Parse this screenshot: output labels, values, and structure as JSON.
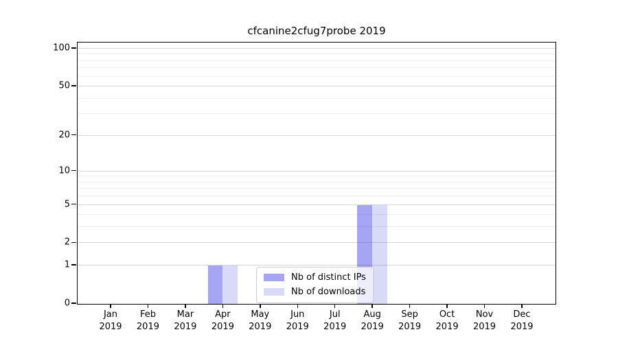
{
  "chart_data": {
    "type": "bar",
    "title": "cfcanine2cfug7probe 2019",
    "categories": [
      "Jan 2019",
      "Feb 2019",
      "Mar 2019",
      "Apr 2019",
      "May 2019",
      "Jun 2019",
      "Jul 2019",
      "Aug 2019",
      "Sep 2019",
      "Oct 2019",
      "Nov 2019",
      "Dec 2019"
    ],
    "series": [
      {
        "name": "Nb of distinct IPs",
        "color": "#a5a5f4",
        "values": [
          0,
          0,
          0,
          1,
          0,
          0,
          0,
          5,
          0,
          0,
          0,
          0
        ]
      },
      {
        "name": "Nb of downloads",
        "color": "#d9d9f8",
        "values": [
          0,
          0,
          0,
          1,
          0,
          0,
          0,
          5,
          0,
          0,
          0,
          0
        ]
      }
    ],
    "y_scale": "log1p",
    "y_major_ticks": [
      0,
      1,
      2,
      5,
      10,
      20,
      50,
      100
    ],
    "y_minor_ticks": [
      3,
      4,
      6,
      7,
      8,
      9,
      30,
      40,
      60,
      70,
      80,
      90
    ],
    "ylim": [
      0,
      110
    ],
    "xlabel": "",
    "ylabel": "",
    "grid": true,
    "grid_over_bars": true,
    "legend_position": "lower center",
    "colors": {
      "axis": "#000000",
      "major_grid": "#d6d6d6",
      "minor_grid": "#ededed",
      "background": "#ffffff"
    }
  }
}
